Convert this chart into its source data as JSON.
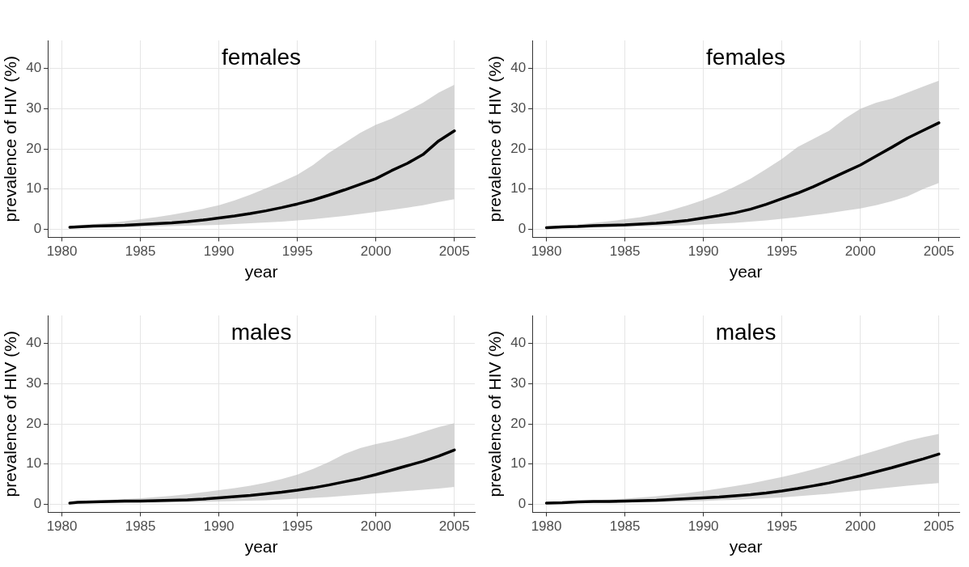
{
  "chart_data": [
    {
      "type": "line",
      "title": "females",
      "xlabel": "year",
      "ylabel": "prevalence of HIV (%)",
      "xlim": [
        1979.1,
        2006.3
      ],
      "xticks": [
        1980,
        1985,
        1990,
        1995,
        2000,
        2005
      ],
      "ylim": [
        -2,
        47
      ],
      "yticks": [
        0,
        10,
        20,
        30,
        40
      ],
      "grid": true,
      "legend": false,
      "marker": "none",
      "line_style": "solid",
      "x": [
        1980.5,
        1981,
        1982,
        1983,
        1984,
        1985,
        1986,
        1987,
        1988,
        1989,
        1990,
        1991,
        1992,
        1993,
        1994,
        1995,
        1996,
        1997,
        1998,
        1999,
        2000,
        2001,
        2002,
        2003,
        2004,
        2005
      ],
      "series": [
        {
          "color": "#000000",
          "values": [
            0.5,
            0.6,
            0.8,
            0.9,
            1.0,
            1.2,
            1.4,
            1.6,
            1.9,
            2.3,
            2.8,
            3.3,
            3.9,
            4.6,
            5.4,
            6.3,
            7.3,
            8.5,
            9.8,
            11.2,
            12.6,
            14.6,
            16.4,
            18.6,
            22.0,
            24.5
          ],
          "lower": [
            0.3,
            0.3,
            0.4,
            0.4,
            0.5,
            0.6,
            0.7,
            0.8,
            0.9,
            1.0,
            1.1,
            1.3,
            1.5,
            1.7,
            1.9,
            2.2,
            2.5,
            2.9,
            3.3,
            3.8,
            4.3,
            4.8,
            5.4,
            6.0,
            6.8,
            7.5
          ],
          "upper": [
            0.8,
            1.0,
            1.3,
            1.6,
            2.0,
            2.5,
            3.0,
            3.6,
            4.3,
            5.1,
            6.0,
            7.2,
            8.6,
            10.2,
            11.8,
            13.6,
            16.0,
            19.0,
            21.5,
            24.0,
            26.0,
            27.5,
            29.5,
            31.5,
            34.0,
            36.0
          ]
        }
      ]
    },
    {
      "type": "line",
      "title": "females",
      "xlabel": "year",
      "ylabel": "prevalence of HIV (%)",
      "xlim": [
        1979.1,
        2006.3
      ],
      "xticks": [
        1980,
        1985,
        1990,
        1995,
        2000,
        2005
      ],
      "ylim": [
        -2,
        47
      ],
      "yticks": [
        0,
        10,
        20,
        30,
        40
      ],
      "grid": true,
      "legend": false,
      "marker": "none",
      "line_style": "solid",
      "x": [
        1980,
        1981,
        1982,
        1983,
        1984,
        1985,
        1986,
        1987,
        1988,
        1989,
        1990,
        1991,
        1992,
        1993,
        1994,
        1995,
        1996,
        1997,
        1998,
        1999,
        2000,
        2001,
        2002,
        2003,
        2004,
        2005
      ],
      "series": [
        {
          "color": "#000000",
          "values": [
            0.4,
            0.6,
            0.7,
            0.9,
            1.0,
            1.1,
            1.3,
            1.5,
            1.8,
            2.2,
            2.8,
            3.4,
            4.1,
            5.0,
            6.2,
            7.6,
            9.0,
            10.6,
            12.4,
            14.2,
            16.0,
            18.2,
            20.4,
            22.7,
            24.6,
            26.5
          ],
          "lower": [
            0.2,
            0.3,
            0.3,
            0.4,
            0.5,
            0.6,
            0.7,
            0.8,
            0.9,
            1.0,
            1.2,
            1.4,
            1.6,
            1.9,
            2.2,
            2.6,
            3.0,
            3.5,
            4.0,
            4.6,
            5.2,
            6.0,
            7.0,
            8.2,
            10.0,
            11.5
          ],
          "upper": [
            0.7,
            0.9,
            1.2,
            1.6,
            2.0,
            2.5,
            3.0,
            3.8,
            4.8,
            6.0,
            7.3,
            8.8,
            10.6,
            12.6,
            15.0,
            17.5,
            20.5,
            22.5,
            24.5,
            27.5,
            30.0,
            31.5,
            32.5,
            34.0,
            35.5,
            37.0
          ]
        }
      ]
    },
    {
      "type": "line",
      "title": "males",
      "xlabel": "year",
      "ylabel": "prevalence of HIV (%)",
      "xlim": [
        1979.1,
        2006.3
      ],
      "xticks": [
        1980,
        1985,
        1990,
        1995,
        2000,
        2005
      ],
      "ylim": [
        -2,
        47
      ],
      "yticks": [
        0,
        10,
        20,
        30,
        40
      ],
      "grid": true,
      "legend": false,
      "marker": "none",
      "line_style": "solid",
      "x": [
        1980.5,
        1981,
        1982,
        1983,
        1984,
        1985,
        1986,
        1987,
        1988,
        1989,
        1990,
        1991,
        1992,
        1993,
        1994,
        1995,
        1996,
        1997,
        1998,
        1999,
        2000,
        2001,
        2002,
        2003,
        2004,
        2005
      ],
      "series": [
        {
          "color": "#000000",
          "values": [
            0.3,
            0.5,
            0.6,
            0.7,
            0.8,
            0.8,
            0.9,
            1.0,
            1.1,
            1.3,
            1.6,
            1.9,
            2.2,
            2.6,
            3.0,
            3.5,
            4.1,
            4.8,
            5.6,
            6.4,
            7.4,
            8.5,
            9.6,
            10.7,
            12.0,
            13.5
          ],
          "lower": [
            0.2,
            0.2,
            0.3,
            0.3,
            0.3,
            0.4,
            0.4,
            0.5,
            0.5,
            0.6,
            0.7,
            0.8,
            0.9,
            1.0,
            1.2,
            1.4,
            1.6,
            1.8,
            2.1,
            2.4,
            2.7,
            3.0,
            3.3,
            3.6,
            3.9,
            4.3
          ],
          "upper": [
            0.5,
            0.7,
            0.9,
            1.1,
            1.3,
            1.5,
            1.8,
            2.1,
            2.5,
            3.0,
            3.5,
            4.0,
            4.6,
            5.4,
            6.3,
            7.4,
            8.8,
            10.5,
            12.5,
            14.0,
            15.0,
            15.8,
            16.8,
            18.0,
            19.2,
            20.2
          ]
        }
      ]
    },
    {
      "type": "line",
      "title": "males",
      "xlabel": "year",
      "ylabel": "prevalence of HIV (%)",
      "xlim": [
        1979.1,
        2006.3
      ],
      "xticks": [
        1980,
        1985,
        1990,
        1995,
        2000,
        2005
      ],
      "ylim": [
        -2,
        47
      ],
      "yticks": [
        0,
        10,
        20,
        30,
        40
      ],
      "grid": true,
      "legend": false,
      "marker": "none",
      "line_style": "solid",
      "x": [
        1980,
        1981,
        1982,
        1983,
        1984,
        1985,
        1986,
        1987,
        1988,
        1989,
        1990,
        1991,
        1992,
        1993,
        1994,
        1995,
        1996,
        1997,
        1998,
        1999,
        2000,
        2001,
        2002,
        2003,
        2004,
        2005
      ],
      "series": [
        {
          "color": "#000000",
          "values": [
            0.3,
            0.4,
            0.6,
            0.7,
            0.7,
            0.8,
            0.9,
            1.0,
            1.2,
            1.4,
            1.6,
            1.8,
            2.1,
            2.4,
            2.8,
            3.3,
            3.9,
            4.6,
            5.3,
            6.2,
            7.1,
            8.1,
            9.1,
            10.2,
            11.3,
            12.5
          ],
          "lower": [
            0.2,
            0.2,
            0.3,
            0.3,
            0.4,
            0.4,
            0.5,
            0.5,
            0.6,
            0.7,
            0.8,
            1.0,
            1.1,
            1.3,
            1.5,
            1.7,
            2.0,
            2.3,
            2.6,
            3.0,
            3.4,
            3.8,
            4.2,
            4.6,
            5.0,
            5.3
          ],
          "upper": [
            0.4,
            0.6,
            0.8,
            1.0,
            1.2,
            1.4,
            1.7,
            2.0,
            2.4,
            2.8,
            3.3,
            3.9,
            4.5,
            5.2,
            6.0,
            6.8,
            7.7,
            8.7,
            9.8,
            11.0,
            12.2,
            13.4,
            14.6,
            15.8,
            16.7,
            17.5
          ]
        }
      ]
    }
  ]
}
